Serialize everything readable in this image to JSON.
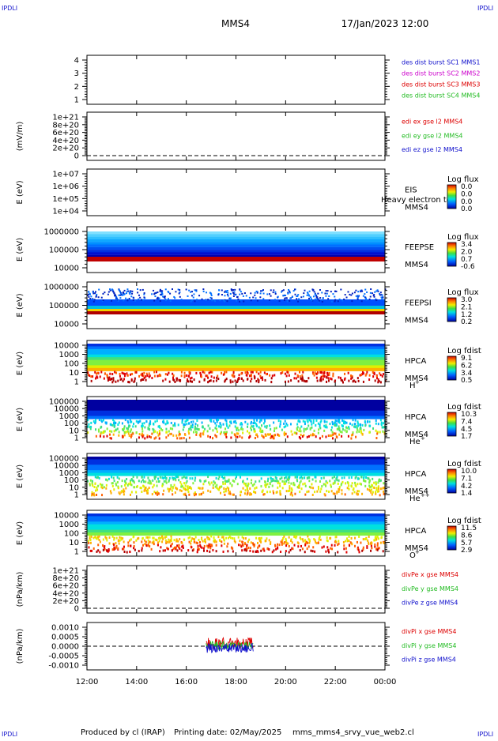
{
  "header": {
    "corner_left": "IPDLI",
    "corner_right": "IPDLI",
    "title": "MMS4",
    "date": "17/Jan/2023 12:00"
  },
  "footer": {
    "corner_left": "IPDLI",
    "corner_right": "IPDLI",
    "produced_by": "Produced by cl (IRAP)",
    "printing_date": "Printing date: 02/May/2025",
    "filename": "mms_mms4_srvy_vue_web2.cl"
  },
  "colors": {
    "blue": "#1010cc",
    "magenta": "#cc00cc",
    "red": "#dd0000",
    "green": "#22bb22",
    "text": "#000000"
  },
  "chart_data": {
    "type": "stacked-panels",
    "x": {
      "ticks": [
        "12:00",
        "14:00",
        "16:00",
        "18:00",
        "20:00",
        "22:00",
        "00:00"
      ],
      "range": [
        "12:00",
        "00:00"
      ]
    },
    "panels": [
      {
        "id": "p1",
        "kind": "lines",
        "ylabel": "",
        "yticks": [
          "4",
          "3",
          "2",
          "1"
        ],
        "legend": [
          {
            "text": "des dist burst SC1 MMS1",
            "color": "blue"
          },
          {
            "text": "des dist burst SC2 MMS2",
            "color": "magenta"
          },
          {
            "text": "des dist burst SC3 MMS3",
            "color": "red"
          },
          {
            "text": "des dist burst SC4 MMS4",
            "color": "green"
          }
        ]
      },
      {
        "id": "p2",
        "kind": "lines",
        "ylabel": "(mV/m)",
        "yticks": [
          "1e+21",
          "8e+20",
          "6e+20",
          "4e+20",
          "2e+20",
          "0"
        ],
        "legend": [
          {
            "text": "edi ex gse l2 MMS4",
            "color": "red"
          },
          {
            "text": "edi ey gse l2 MMS4",
            "color": "green"
          },
          {
            "text": "edi ez gse l2 MMS4",
            "color": "blue"
          }
        ]
      },
      {
        "id": "p3",
        "kind": "spec",
        "ylabel": "E (eV)",
        "yticks": [
          "1e+07",
          "1e+06",
          "1e+05",
          "1e+04"
        ],
        "right_labels": [
          "EIS",
          "MMS4"
        ],
        "overlay": "Heavy electron to",
        "cbar_title": "Log flux",
        "cbar_ticks": [
          "0.0",
          "0.0",
          "0.0",
          "0.0"
        ]
      },
      {
        "id": "p4",
        "kind": "spec",
        "ylabel": "E (eV)",
        "yticks": [
          "1000000",
          "100000",
          "10000"
        ],
        "right_labels": [
          "FEEPSE",
          "MMS4"
        ],
        "cbar_title": "Log flux",
        "cbar_ticks": [
          "3.4",
          "2.0",
          "0.7",
          "-0.6"
        ]
      },
      {
        "id": "p5",
        "kind": "spec",
        "ylabel": "E (eV)",
        "yticks": [
          "1000000",
          "100000",
          "10000"
        ],
        "right_labels": [
          "FEEPSI",
          "MMS4"
        ],
        "cbar_title": "Log flux",
        "cbar_ticks": [
          "3.0",
          "2.1",
          "1.2",
          "0.2"
        ]
      },
      {
        "id": "p6",
        "kind": "spec",
        "ylabel": "E (eV)",
        "yticks": [
          "10000",
          "1000",
          "100",
          "10",
          "1"
        ],
        "right_labels": [
          "HPCA",
          "MMS4"
        ],
        "species": "H",
        "species_sup": "+",
        "cbar_title": "Log fdist",
        "cbar_ticks": [
          "9.1",
          "6.2",
          "3.4",
          "0.5"
        ]
      },
      {
        "id": "p7",
        "kind": "spec",
        "ylabel": "E (eV)",
        "yticks": [
          "100000",
          "10000",
          "1000",
          "100",
          "10",
          "1"
        ],
        "right_labels": [
          "HPCA",
          "MMS4"
        ],
        "species": "He",
        "species_sup": "+",
        "cbar_title": "Log fdist",
        "cbar_ticks": [
          "10.3",
          "7.4",
          "4.5",
          "1.7"
        ]
      },
      {
        "id": "p8",
        "kind": "spec",
        "ylabel": "E (eV)",
        "yticks": [
          "100000",
          "10000",
          "1000",
          "100",
          "10",
          "1"
        ],
        "right_labels": [
          "HPCA",
          "MMS4"
        ],
        "species": "He",
        "species_sup": "++",
        "cbar_title": "Log fdist",
        "cbar_ticks": [
          "10.0",
          "7.1",
          "4.2",
          "1.4"
        ]
      },
      {
        "id": "p9",
        "kind": "spec",
        "ylabel": "E (eV)",
        "yticks": [
          "10000",
          "1000",
          "100",
          "10",
          "1"
        ],
        "right_labels": [
          "HPCA",
          "MMS4"
        ],
        "species": "O",
        "species_sup": "+",
        "cbar_title": "Log fdist",
        "cbar_ticks": [
          "11.5",
          "8.6",
          "5.7",
          "2.9"
        ]
      },
      {
        "id": "p10",
        "kind": "lines",
        "ylabel": "(nPa/km)",
        "yticks": [
          "1e+21",
          "8e+20",
          "6e+20",
          "4e+20",
          "2e+20",
          "0"
        ],
        "legend": [
          {
            "text": "divPe x gse MMS4",
            "color": "red"
          },
          {
            "text": "divPe y gse MMS4",
            "color": "green"
          },
          {
            "text": "divPe z gse MMS4",
            "color": "blue"
          }
        ]
      },
      {
        "id": "p11",
        "kind": "lines",
        "ylabel": "(nPa/km)",
        "yticks": [
          "0.0010",
          "0.0005",
          "0.0000",
          "-0.0005",
          "-0.0010"
        ],
        "yrange": [
          -0.0012,
          0.0012
        ],
        "data_interval": [
          "16:48",
          "18:42"
        ],
        "legend": [
          {
            "text": "divPi x gse MMS4",
            "color": "red"
          },
          {
            "text": "divPi y gse MMS4",
            "color": "green"
          },
          {
            "text": "divPi z gse MMS4",
            "color": "blue"
          }
        ]
      }
    ]
  }
}
